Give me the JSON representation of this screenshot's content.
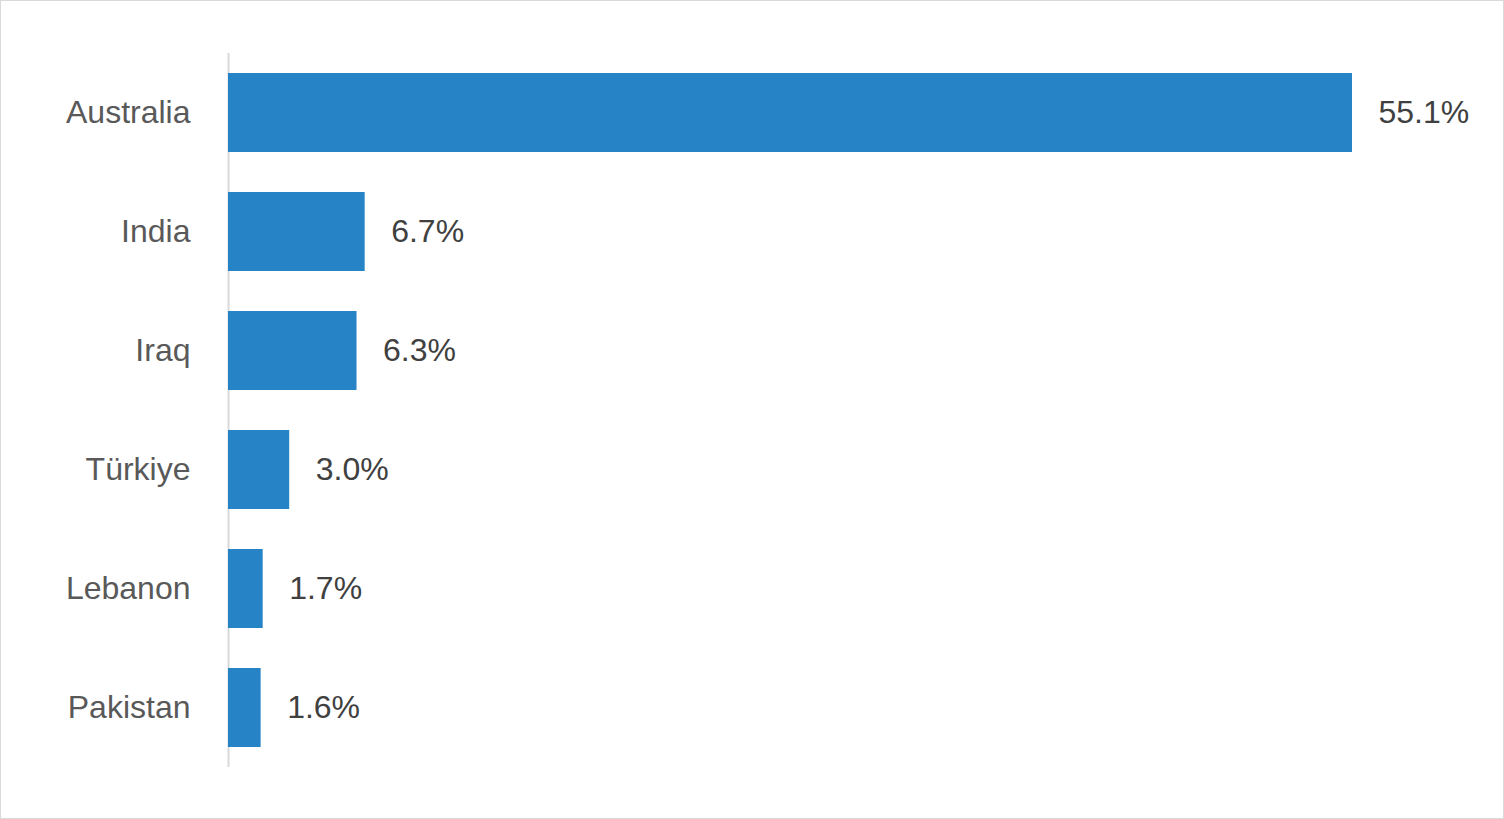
{
  "chart_data": {
    "type": "bar",
    "orientation": "horizontal",
    "categories": [
      "Australia",
      "India",
      "Iraq",
      "Türkiye",
      "Lebanon",
      "Pakistan"
    ],
    "values": [
      55.1,
      6.7,
      6.3,
      3.0,
      1.7,
      1.6
    ],
    "value_labels": [
      "55.1%",
      "6.7%",
      "6.3%",
      "3.0%",
      "1.7%",
      "1.6%"
    ],
    "color": "#2683c6",
    "data_labels": true,
    "tick_labels": "y",
    "grid": false
  }
}
